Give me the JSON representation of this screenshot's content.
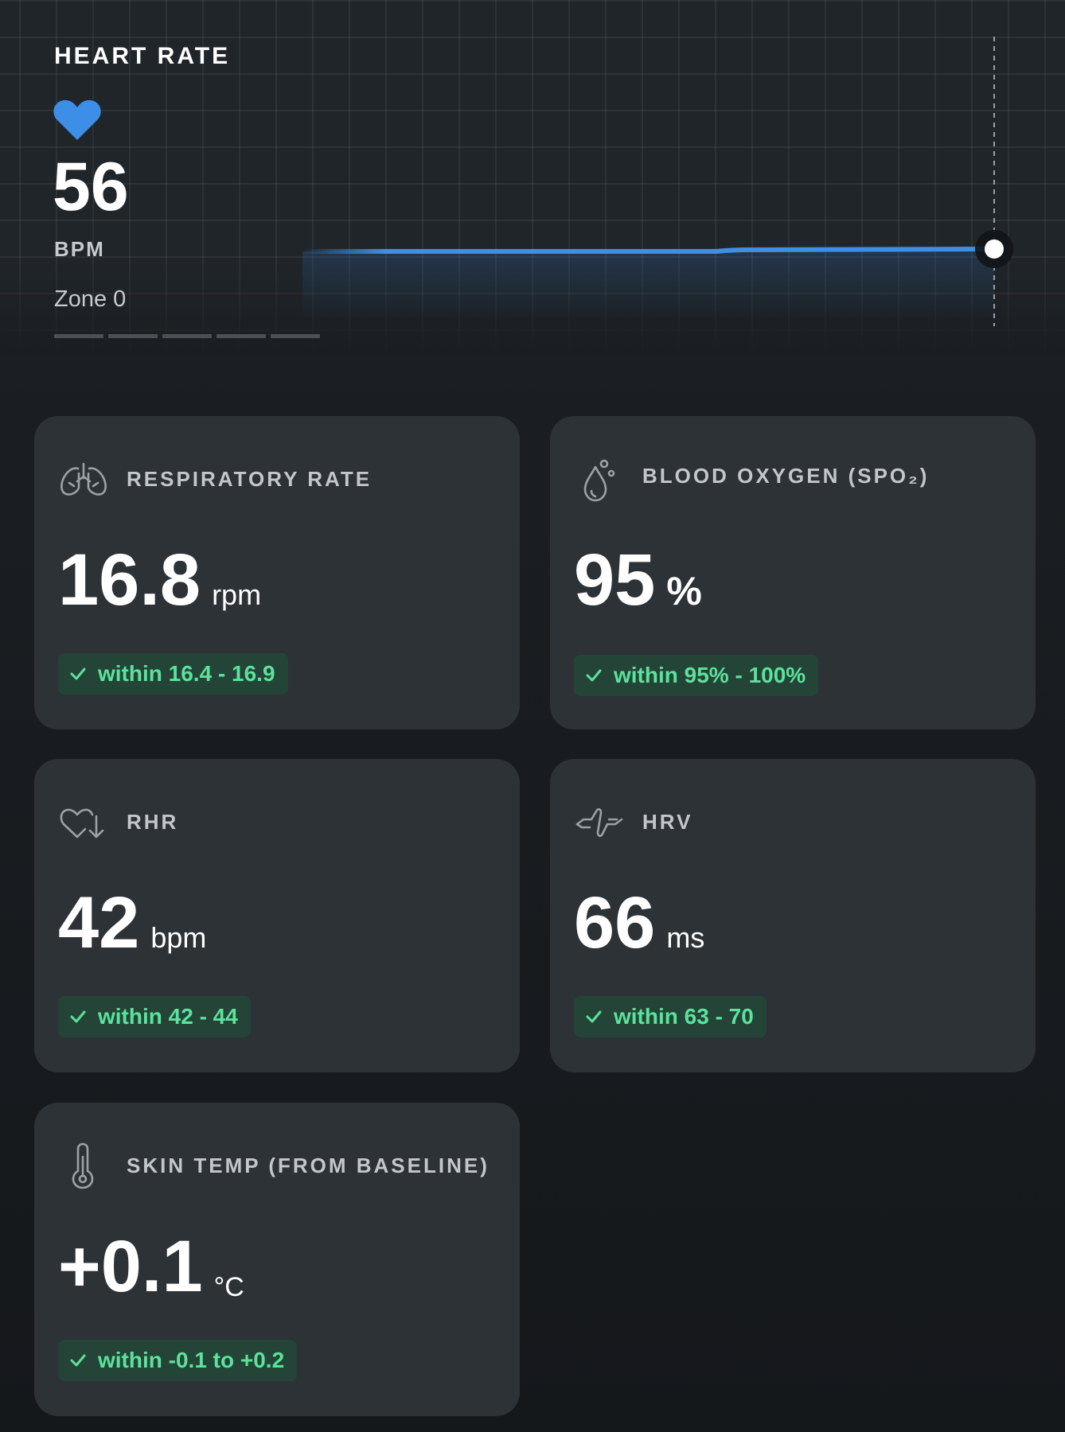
{
  "heart_rate": {
    "title": "HEART RATE",
    "value": "56",
    "unit": "BPM",
    "zone": "Zone 0",
    "heart_color": "#3d8ee6",
    "line_color": "#3d8ee6",
    "zone_segments": 5
  },
  "cards": {
    "respiratory": {
      "label": "RESPIRATORY RATE",
      "value": "16.8",
      "unit": "rpm",
      "range": "within 16.4 - 16.9",
      "icon": "lungs-icon"
    },
    "spo2": {
      "label": "BLOOD OXYGEN (SPO₂)",
      "value": "95",
      "unit": "%",
      "range": "within 95% - 100%",
      "icon": "blood-drop-icon"
    },
    "rhr": {
      "label": "RHR",
      "value": "42",
      "unit": "bpm",
      "range": "within 42 - 44",
      "icon": "heart-down-arrow-icon"
    },
    "hrv": {
      "label": "HRV",
      "value": "66",
      "unit": "ms",
      "range": "within 63 - 70",
      "icon": "pulse-wave-icon"
    },
    "skin_temp": {
      "label": "SKIN TEMP (FROM BASELINE)",
      "value": "+0.1",
      "unit": "°C",
      "range": "within -0.1 to +0.2",
      "icon": "thermometer-icon"
    }
  },
  "colors": {
    "badge_bg": "#244437",
    "badge_text": "#5be29b",
    "card_bg": "#2d3236",
    "accent_blue": "#3d8ee6"
  }
}
